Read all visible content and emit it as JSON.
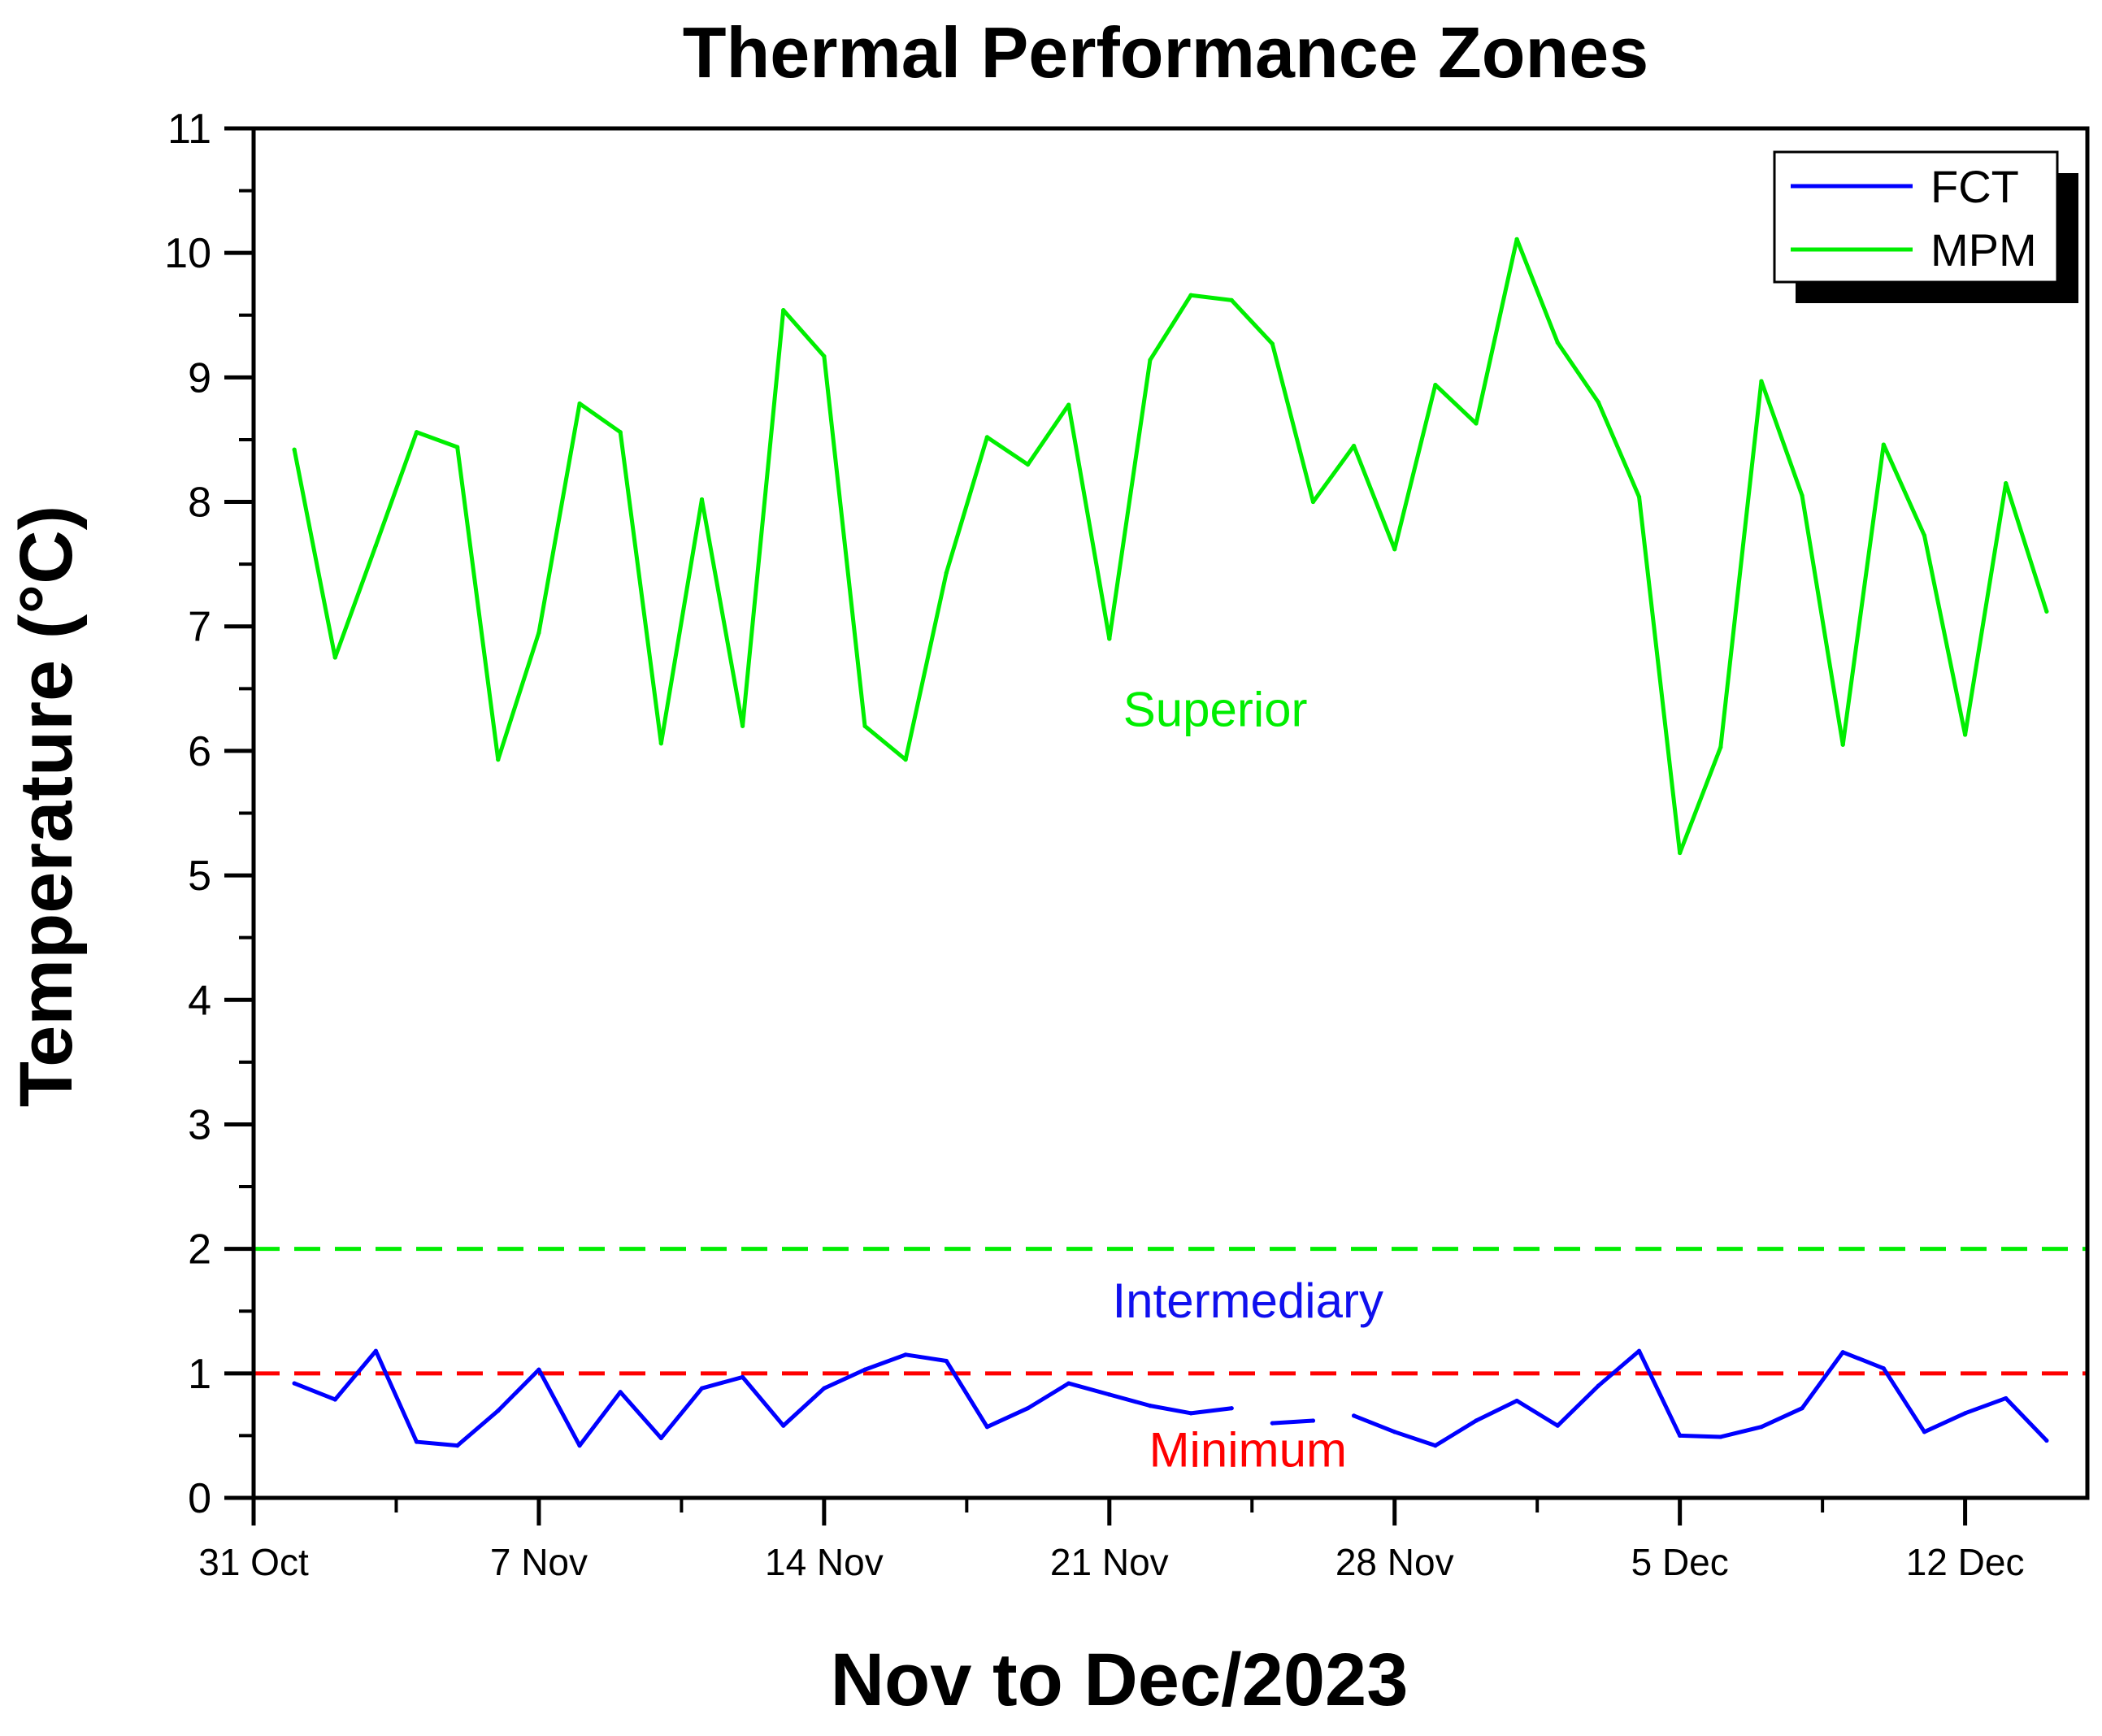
{
  "chart_data": {
    "type": "line",
    "title": "Thermal Performance Zones",
    "xlabel": "Nov to Dec/2023",
    "ylabel": "Temperature (°C)",
    "ylim": [
      0,
      11
    ],
    "yticks": [
      0,
      1,
      2,
      3,
      4,
      5,
      6,
      7,
      8,
      9,
      10,
      11
    ],
    "xlim": [
      0,
      45
    ],
    "x_ticks": [
      {
        "day": 0,
        "label": "31 Oct"
      },
      {
        "day": 7,
        "label": "7 Nov"
      },
      {
        "day": 14,
        "label": "14 Nov"
      },
      {
        "day": 21,
        "label": "21 Nov"
      },
      {
        "day": 28,
        "label": "28 Nov"
      },
      {
        "day": 35,
        "label": "5 Dec"
      },
      {
        "day": 42,
        "label": "12 Dec"
      }
    ],
    "x_day_offset_start": 1,
    "series": [
      {
        "name": "FCT",
        "color": "#0000ff",
        "values": [
          0.92,
          0.79,
          1.18,
          0.45,
          0.42,
          0.7,
          1.03,
          0.42,
          0.85,
          0.48,
          0.88,
          0.97,
          0.58,
          0.88,
          1.03,
          1.15,
          1.1,
          0.57,
          0.72,
          0.92,
          0.83,
          0.74,
          0.68,
          0.72,
          0.6,
          0.62,
          0.66,
          0.53,
          0.42,
          0.62,
          0.78,
          0.58,
          0.9,
          1.18,
          0.5,
          0.49,
          0.57,
          0.72,
          1.17,
          1.04,
          0.53,
          0.68,
          0.8,
          0.46
        ],
        "gaps": [
          [
            23,
            24
          ],
          [
            25,
            26
          ]
        ]
      },
      {
        "name": "MPM",
        "color": "#00ee00",
        "values": [
          8.42,
          6.75,
          7.65,
          8.56,
          8.44,
          5.93,
          6.95,
          8.79,
          8.56,
          6.06,
          8.02,
          6.2,
          9.54,
          9.17,
          6.2,
          5.93,
          7.43,
          8.52,
          8.3,
          8.78,
          6.9,
          9.14,
          9.66,
          9.62,
          9.27,
          8.0,
          8.45,
          7.62,
          8.94,
          8.63,
          10.11,
          9.28,
          8.8,
          8.04,
          5.18,
          6.03,
          8.97,
          8.05,
          6.05,
          8.46,
          7.73,
          6.13,
          8.15,
          7.12
        ],
        "gaps": []
      }
    ],
    "thresholds": [
      {
        "value": 2,
        "color": "#00ee00",
        "style": "dashed"
      },
      {
        "value": 1,
        "color": "#ff0000",
        "style": "dashed"
      }
    ],
    "zones": [
      {
        "label": "Superior",
        "color": "#00ee00",
        "y": 6.2,
        "x": 23.6
      },
      {
        "label": "Intermediary",
        "color": "#1010ee",
        "y": 1.45,
        "x": 24.4
      },
      {
        "label": "Minimum",
        "color": "#ff0000",
        "y": 0.25,
        "x": 24.4
      }
    ],
    "legend": {
      "position": "top-right",
      "entries": [
        "FCT",
        "MPM"
      ]
    }
  }
}
